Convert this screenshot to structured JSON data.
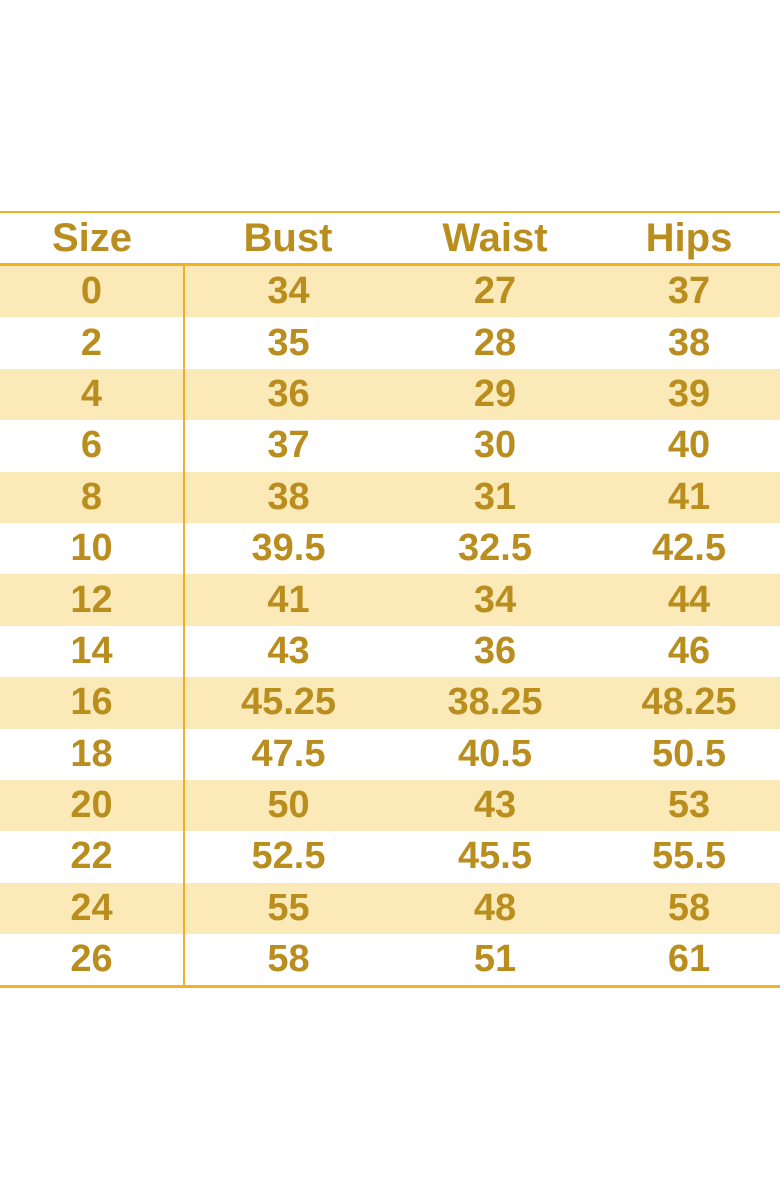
{
  "chart_data": {
    "type": "table",
    "title": "",
    "columns": [
      "Size",
      "Bust",
      "Waist",
      "Hips"
    ],
    "rows": [
      [
        "0",
        "34",
        "27",
        "37"
      ],
      [
        "2",
        "35",
        "28",
        "38"
      ],
      [
        "4",
        "36",
        "29",
        "39"
      ],
      [
        "6",
        "37",
        "30",
        "40"
      ],
      [
        "8",
        "38",
        "31",
        "41"
      ],
      [
        "10",
        "39.5",
        "32.5",
        "42.5"
      ],
      [
        "12",
        "41",
        "34",
        "44"
      ],
      [
        "14",
        "43",
        "36",
        "46"
      ],
      [
        "16",
        "45.25",
        "38.25",
        "48.25"
      ],
      [
        "18",
        "47.5",
        "40.5",
        "50.5"
      ],
      [
        "20",
        "50",
        "43",
        "53"
      ],
      [
        "22",
        "52.5",
        "45.5",
        "55.5"
      ],
      [
        "24",
        "55",
        "48",
        "58"
      ],
      [
        "26",
        "58",
        "51",
        "61"
      ]
    ],
    "layout": {
      "striped_rows": "odd data rows shaded",
      "grid": "horizontal rule above header row, below header row, below last row; vertical divider after Size column"
    }
  },
  "colors": {
    "text": "#B98E1E",
    "stripe": "#FBEAB8",
    "line": "#F2B224",
    "divider": "#EFAF2B",
    "background": "#FFFFFF"
  }
}
